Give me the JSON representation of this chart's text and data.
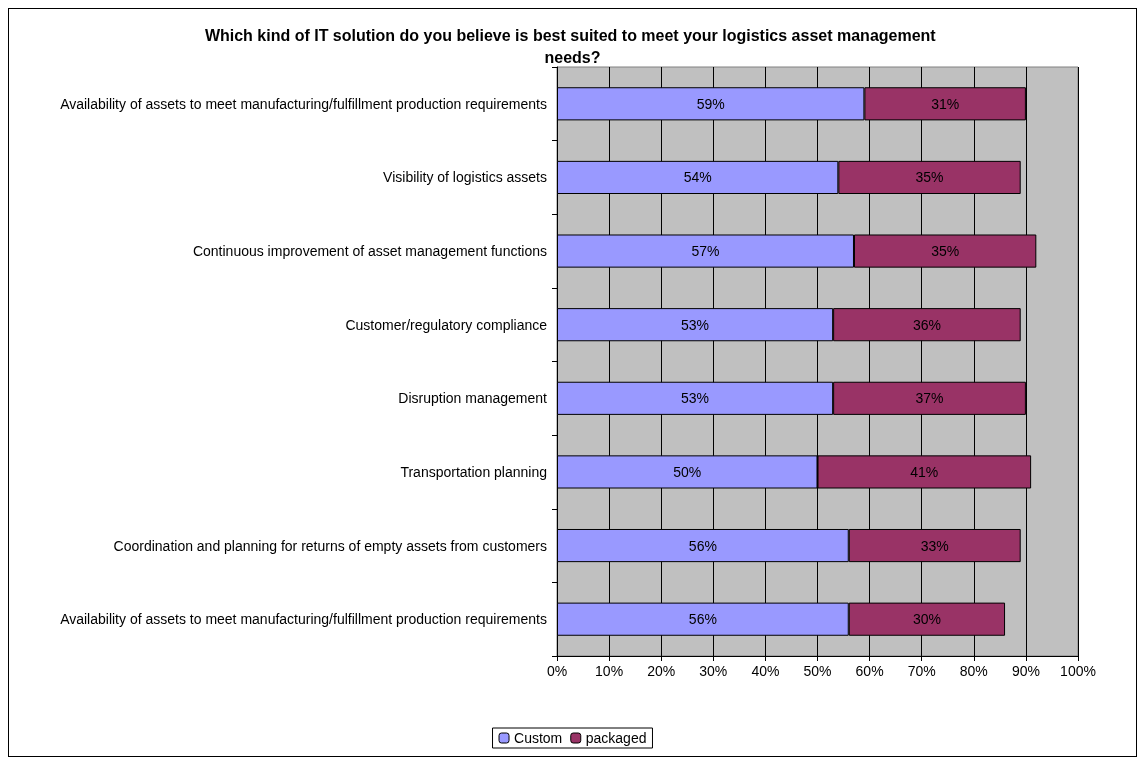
{
  "chart_data": {
    "type": "bar",
    "orientation": "horizontal",
    "stacked": true,
    "title": "Which kind of IT solution do you believe is best suited to meet your logistics asset management needs?",
    "categories": [
      "Availability of assets to meet manufacturing/fulfillment production requirements",
      "Visibility of logistics assets",
      "Continuous improvement of asset management functions",
      "Customer/regulatory compliance",
      "Disruption management",
      "Transportation planning",
      "Coordination and planning for returns of empty assets from customers",
      "Availability of assets to meet manufacturing/fulfillment production requirements"
    ],
    "series": [
      {
        "name": "Custom",
        "color": "#9999ff",
        "values": [
          59,
          54,
          57,
          53,
          53,
          50,
          56,
          56
        ],
        "value_labels": [
          "59%",
          "54%",
          "57%",
          "53%",
          "53%",
          "50%",
          "56%",
          "56%"
        ]
      },
      {
        "name": "packaged",
        "color": "#993366",
        "values": [
          31,
          35,
          35,
          36,
          37,
          41,
          33,
          30
        ],
        "value_labels": [
          "31%",
          "35%",
          "35%",
          "36%",
          "37%",
          "41%",
          "33%",
          "30%"
        ]
      }
    ],
    "xlim": [
      0,
      100
    ],
    "xticks": [
      {
        "value": 0,
        "label": "0%"
      },
      {
        "value": 10,
        "label": "10%"
      },
      {
        "value": 20,
        "label": "20%"
      },
      {
        "value": 30,
        "label": "30%"
      },
      {
        "value": 40,
        "label": "40%"
      },
      {
        "value": 50,
        "label": "50%"
      },
      {
        "value": 60,
        "label": "60%"
      },
      {
        "value": 70,
        "label": "70%"
      },
      {
        "value": 80,
        "label": "80%"
      },
      {
        "value": 90,
        "label": "90%"
      },
      {
        "value": 100,
        "label": "100%"
      }
    ],
    "grid": "x",
    "legend": "bottom"
  }
}
